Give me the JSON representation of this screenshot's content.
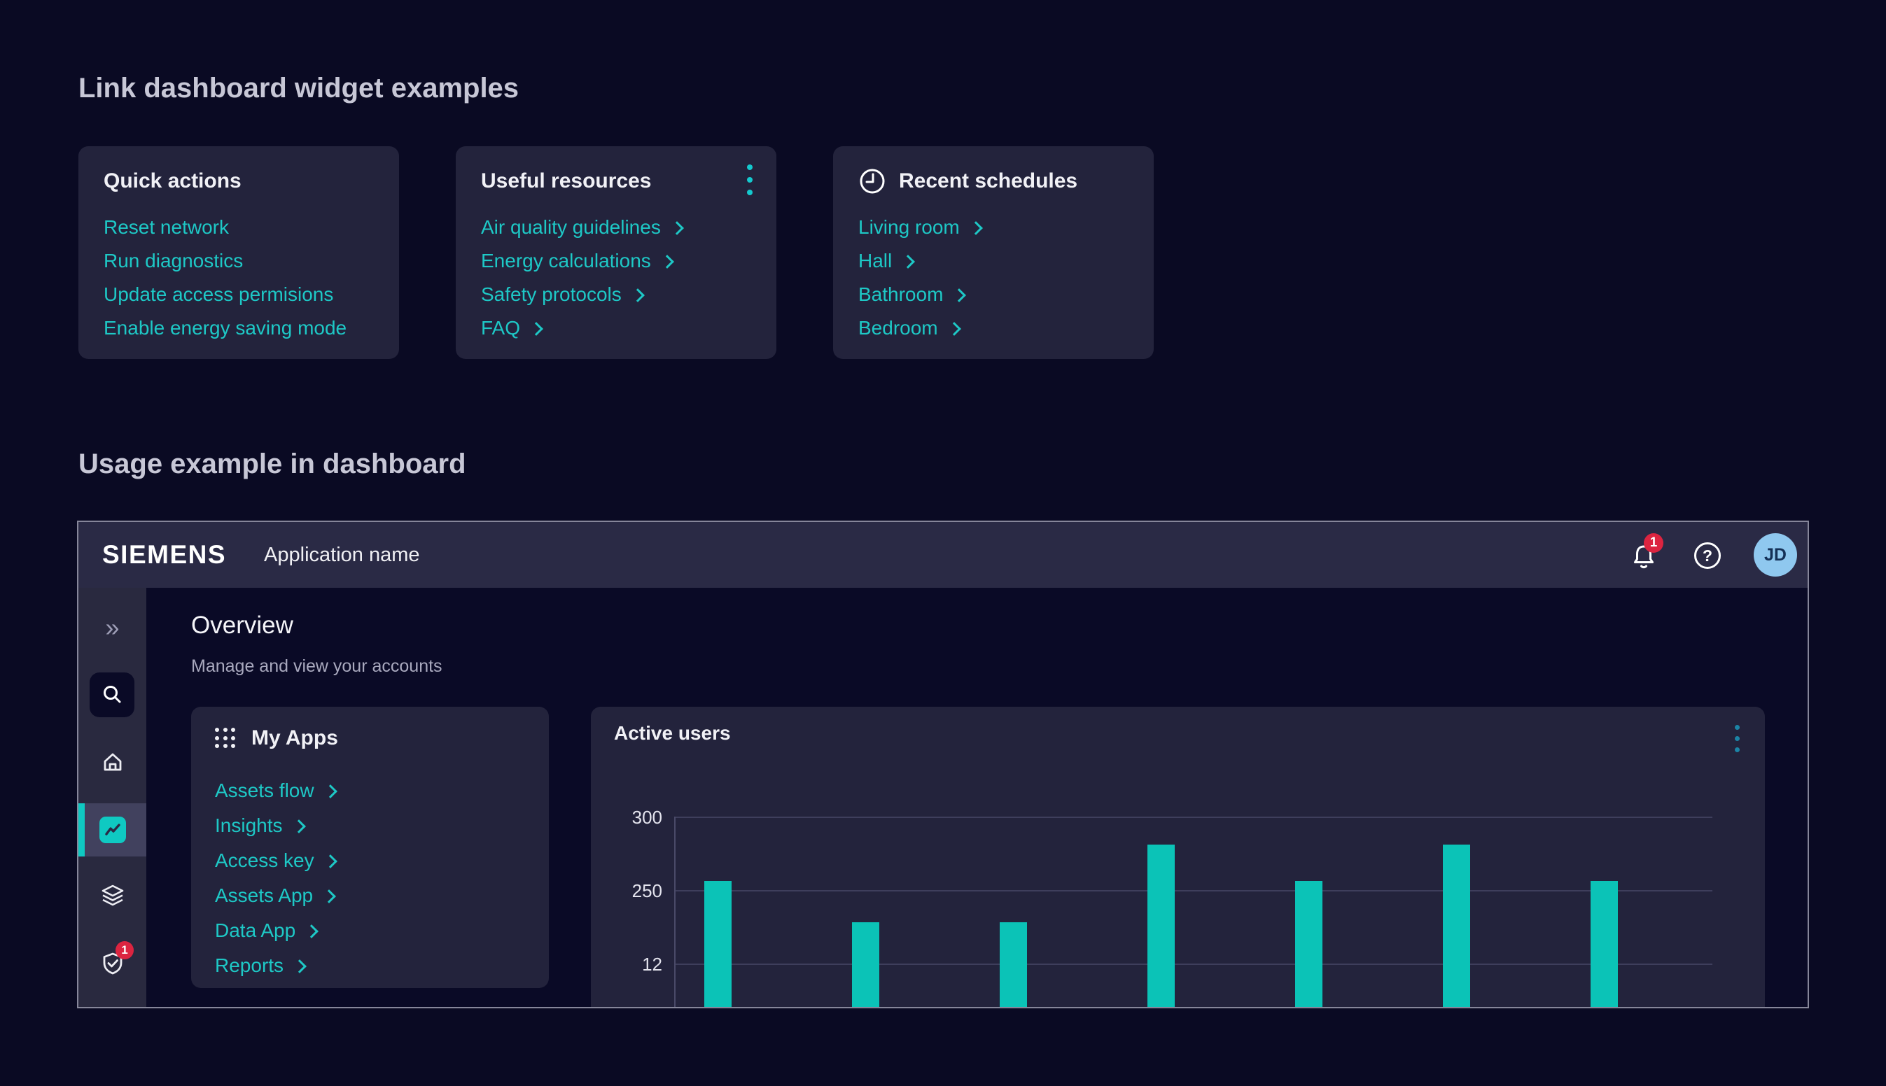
{
  "page": {
    "heading_widgets": "Link dashboard widget examples",
    "heading_usage": "Usage example in dashboard"
  },
  "colors": {
    "link_teal": "#1EC8C6",
    "bar_teal": "#0BC3B7",
    "badge_red": "#DC2440",
    "avatar_blue": "#8FC8EF",
    "card_bg": "#23233C"
  },
  "widget_cards": [
    {
      "title": "Quick actions",
      "links": [
        {
          "label": "Reset network"
        },
        {
          "label": "Run diagnostics"
        },
        {
          "label": "Update access permisions"
        },
        {
          "label": "Enable energy saving mode"
        }
      ]
    },
    {
      "title": "Useful resources",
      "links": [
        {
          "label": "Air quality guidelines"
        },
        {
          "label": "Energy calculations"
        },
        {
          "label": "Safety protocols"
        },
        {
          "label": "FAQ"
        }
      ]
    },
    {
      "title": "Recent schedules",
      "links": [
        {
          "label": "Living room"
        },
        {
          "label": "Hall"
        },
        {
          "label": "Bathroom"
        },
        {
          "label": "Bedroom"
        }
      ]
    }
  ],
  "dashboard": {
    "header": {
      "logo": "SIEMENS",
      "app_name": "Application name",
      "notification_count": "1",
      "help_glyph": "?",
      "avatar_initials": "JD"
    },
    "sidebar": {
      "expand_glyph": "»",
      "shield_badge_count": "1"
    },
    "overview": {
      "title": "Overview",
      "subtitle": "Manage and view your accounts"
    },
    "my_apps": {
      "title": "My Apps",
      "links": [
        {
          "label": "Assets flow"
        },
        {
          "label": "Insights"
        },
        {
          "label": "Access key"
        },
        {
          "label": "Assets App"
        },
        {
          "label": "Data App"
        },
        {
          "label": "Reports"
        }
      ]
    }
  },
  "chart_data": {
    "type": "bar",
    "title": "Active users",
    "values": [
      256,
      228,
      228,
      281,
      256,
      281,
      256
    ],
    "yticks": [
      "300",
      "250",
      "12"
    ],
    "ylim_labels": [
      300,
      12
    ],
    "grid": true,
    "legend": false,
    "x_axis_labels_visible": false,
    "bar_color": "#0BC3B7"
  }
}
